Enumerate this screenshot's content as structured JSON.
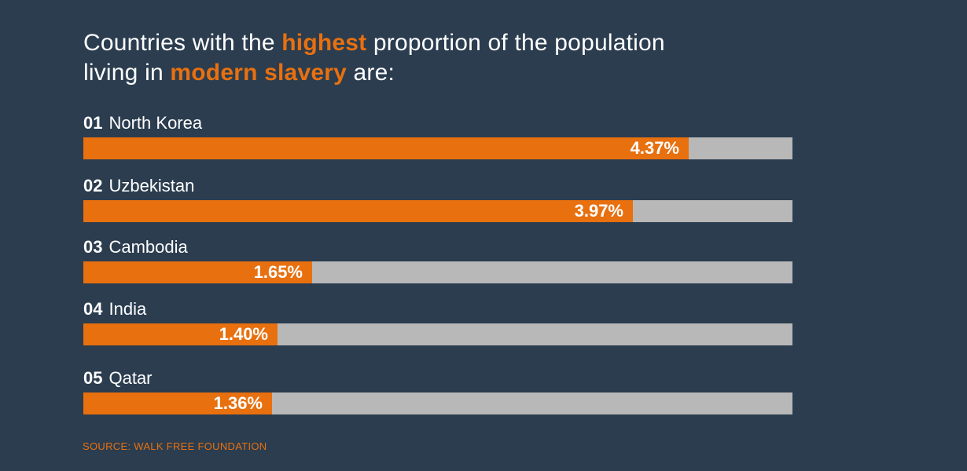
{
  "title": {
    "p1": "Countries with the ",
    "h1": "highest",
    "p2": " proportion of the population living in ",
    "h2": "modern slavery",
    "p3": " are:"
  },
  "chart_data": {
    "type": "bar",
    "orientation": "horizontal",
    "categories": [
      "North Korea",
      "Uzbekistan",
      "Cambodia",
      "India",
      "Qatar"
    ],
    "ranks": [
      "01",
      "02",
      "03",
      "04",
      "05"
    ],
    "values": [
      4.37,
      3.97,
      1.65,
      1.4,
      1.36
    ],
    "value_labels": [
      "4.37%",
      "3.97%",
      "1.65%",
      "1.40%",
      "1.36%"
    ],
    "xlim": [
      0,
      5.12
    ],
    "unit": "%",
    "grid": false,
    "legend": "none"
  },
  "source": "SOURCE: WALK FREE FOUNDATION",
  "colors": {
    "background": "#2b3d4f",
    "accent": "#e8700f",
    "track": "#b8b8b8",
    "text": "#ffffff"
  }
}
